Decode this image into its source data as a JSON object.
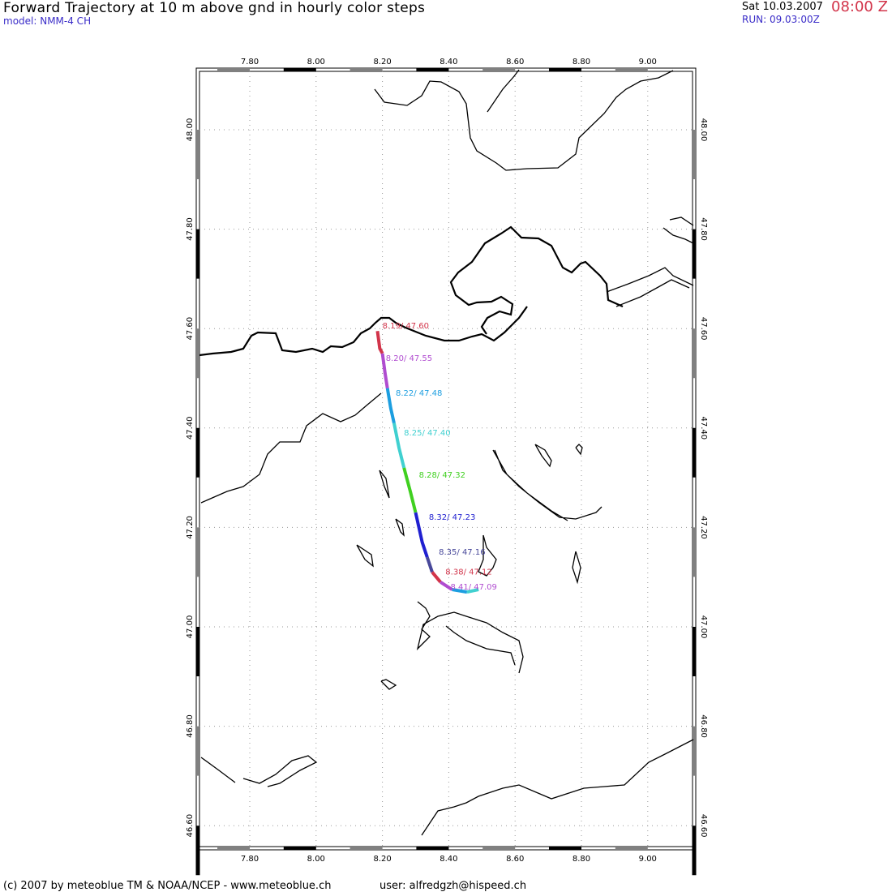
{
  "header": {
    "title": "Forward Trajectory at 10 m above gnd in hourly color steps",
    "model": "model: NMM-4 CH",
    "date": "Sat 10.03.2007",
    "hour": "08:00 Z",
    "run": "RUN: 09.03:00Z"
  },
  "footer": {
    "copyright": "(c) 2007 by meteoblue TM & NOAA/NCEP - www.meteoblue.ch",
    "user": "user: alfredgzh@hispeed.ch"
  },
  "map": {
    "lon_ticks": [
      "7.80",
      "8.00",
      "8.20",
      "8.40",
      "8.60",
      "8.80",
      "9.00"
    ],
    "lat_ticks": [
      "48.00",
      "47.80",
      "47.60",
      "47.40",
      "47.20",
      "47.00",
      "46.80",
      "46.60"
    ]
  },
  "trajectory": {
    "segments": [
      {
        "color": "#d2344a",
        "points": [
          [
            8.185,
            47.595
          ],
          [
            8.192,
            47.56
          ],
          [
            8.2,
            47.55
          ]
        ]
      },
      {
        "color": "#b04cd0",
        "points": [
          [
            8.2,
            47.55
          ],
          [
            8.208,
            47.51
          ],
          [
            8.215,
            47.48
          ]
        ]
      },
      {
        "color": "#1c9ee0",
        "points": [
          [
            8.215,
            47.48
          ],
          [
            8.225,
            47.44
          ],
          [
            8.235,
            47.41
          ]
        ]
      },
      {
        "color": "#40d0d0",
        "points": [
          [
            8.235,
            47.41
          ],
          [
            8.25,
            47.36
          ],
          [
            8.265,
            47.32
          ]
        ]
      },
      {
        "color": "#40d020",
        "points": [
          [
            8.265,
            47.32
          ],
          [
            8.285,
            47.27
          ],
          [
            8.3,
            47.23
          ]
        ]
      },
      {
        "color": "#2020d0",
        "points": [
          [
            8.3,
            47.23
          ],
          [
            8.32,
            47.17
          ],
          [
            8.335,
            47.14
          ]
        ]
      },
      {
        "color": "#48489a",
        "points": [
          [
            8.335,
            47.14
          ],
          [
            8.35,
            47.11
          ]
        ]
      },
      {
        "color": "#d2344a",
        "points": [
          [
            8.35,
            47.11
          ],
          [
            8.375,
            47.09
          ]
        ]
      },
      {
        "color": "#b04cd0",
        "points": [
          [
            8.375,
            47.09
          ],
          [
            8.41,
            47.075
          ]
        ]
      },
      {
        "color": "#1c9ee0",
        "points": [
          [
            8.41,
            47.075
          ],
          [
            8.455,
            47.07
          ]
        ]
      },
      {
        "color": "#40d0d0",
        "points": [
          [
            8.455,
            47.07
          ],
          [
            8.49,
            47.075
          ]
        ]
      }
    ],
    "labels": [
      {
        "text": "8.19/  47.60",
        "color": "#d2344a",
        "lon": 8.2,
        "lat": 47.6
      },
      {
        "text": "8.20/  47.55",
        "color": "#b04cd0",
        "lon": 8.21,
        "lat": 47.535
      },
      {
        "text": "8.22/  47.48",
        "color": "#1c9ee0",
        "lon": 8.24,
        "lat": 47.465
      },
      {
        "text": "8.25/  47.40",
        "color": "#40d0d0",
        "lon": 8.265,
        "lat": 47.385
      },
      {
        "text": "8.28/  47.32",
        "color": "#40d020",
        "lon": 8.31,
        "lat": 47.3
      },
      {
        "text": "8.32/  47.23",
        "color": "#2020d0",
        "lon": 8.34,
        "lat": 47.215
      },
      {
        "text": "8.35/  47.16",
        "color": "#48489a",
        "lon": 8.37,
        "lat": 47.145
      },
      {
        "text": "8.38/  47.12",
        "color": "#d2344a",
        "lon": 8.39,
        "lat": 47.105
      },
      {
        "text": "8.41/  47.09",
        "color": "#b04cd0",
        "lon": 8.405,
        "lat": 47.075
      }
    ]
  }
}
